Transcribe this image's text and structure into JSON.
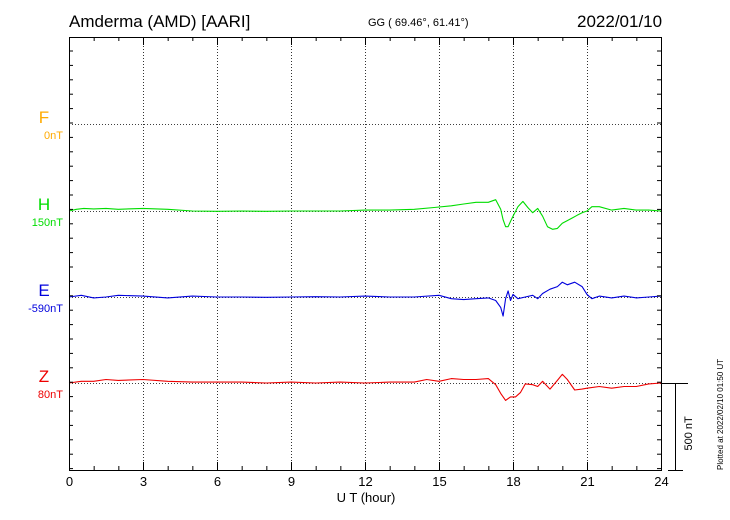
{
  "header": {
    "station": "Amderma (AMD)  [AARI]",
    "coordinates": "GG ( 69.46°,  61.41°)",
    "date": "2022/01/10"
  },
  "footnote": "Plotted at 2022/02/10 01:50 UT",
  "chart_data": {
    "type": "line",
    "xlabel": "U T (hour)",
    "xlim": [
      0,
      24
    ],
    "x_ticks": [
      0,
      3,
      6,
      9,
      12,
      15,
      18,
      21,
      24
    ],
    "grid": true,
    "scale_bar": {
      "label": "500 nT",
      "value_nT": 500
    },
    "series": [
      {
        "name": "F",
        "offset_label": "0nT",
        "color": "#FFAA00",
        "x": [],
        "y": []
      },
      {
        "name": "H",
        "offset_label": "150nT",
        "color": "#00DD00",
        "x": [
          0,
          0.3,
          0.6,
          1,
          1.5,
          2,
          3,
          4,
          5,
          6,
          7,
          8,
          9,
          10,
          11,
          12,
          13,
          14,
          14.8,
          15.5,
          16,
          16.5,
          17,
          17.3,
          17.5,
          17.6,
          17.7,
          17.8,
          17.9,
          18,
          18.2,
          18.4,
          18.6,
          18.8,
          19,
          19.2,
          19.4,
          19.6,
          19.8,
          20,
          20.2,
          20.4,
          20.6,
          20.8,
          21,
          21.2,
          21.5,
          22,
          22.5,
          23,
          23.5,
          24
        ],
        "y": [
          150,
          160,
          165,
          162,
          165,
          160,
          165,
          160,
          150,
          148,
          150,
          148,
          150,
          150,
          150,
          155,
          155,
          160,
          170,
          180,
          190,
          200,
          200,
          215,
          160,
          100,
          60,
          60,
          90,
          120,
          175,
          205,
          170,
          140,
          165,
          120,
          60,
          45,
          50,
          80,
          95,
          110,
          125,
          140,
          150,
          175,
          175,
          155,
          165,
          155,
          155,
          150
        ]
      },
      {
        "name": "E",
        "offset_label": "-590nT",
        "color": "#0000DD",
        "x": [
          0,
          0.5,
          1,
          1.5,
          2,
          3,
          4,
          5,
          6,
          7,
          8,
          9,
          10,
          11,
          12,
          13,
          14,
          15,
          15.5,
          16,
          16.5,
          17,
          17.3,
          17.5,
          17.6,
          17.7,
          17.8,
          17.9,
          18,
          18.2,
          18.5,
          18.8,
          19,
          19.2,
          19.5,
          19.8,
          20,
          20.2,
          20.5,
          20.8,
          21,
          21.2,
          21.5,
          22,
          22.5,
          23,
          23.5,
          24
        ],
        "y": [
          -590,
          -580,
          -595,
          -590,
          -580,
          -585,
          -595,
          -585,
          -590,
          -590,
          -592,
          -590,
          -588,
          -590,
          -585,
          -590,
          -590,
          -580,
          -600,
          -605,
          -600,
          -595,
          -610,
          -650,
          -700,
          -600,
          -555,
          -610,
          -575,
          -600,
          -590,
          -580,
          -600,
          -570,
          -545,
          -530,
          -505,
          -520,
          -505,
          -530,
          -575,
          -600,
          -585,
          -595,
          -585,
          -595,
          -590,
          -585
        ]
      },
      {
        "name": "Z",
        "offset_label": "80nT",
        "color": "#EE0000",
        "x": [
          0,
          0.5,
          1,
          1.5,
          2,
          3,
          4,
          5,
          6,
          7,
          8,
          9,
          10,
          11,
          12,
          13,
          14,
          14.5,
          15,
          15.5,
          16,
          16.5,
          17,
          17.3,
          17.5,
          17.7,
          17.9,
          18.1,
          18.3,
          18.5,
          18.8,
          19,
          19.2,
          19.5,
          19.8,
          20,
          20.2,
          20.5,
          20.8,
          21,
          21.5,
          22,
          22.5,
          23,
          23.5,
          24
        ],
        "y": [
          80,
          90,
          90,
          100,
          95,
          100,
          90,
          85,
          85,
          85,
          80,
          85,
          80,
          85,
          80,
          85,
          85,
          100,
          90,
          105,
          100,
          100,
          105,
          70,
          20,
          -20,
          0,
          0,
          25,
          75,
          70,
          60,
          90,
          45,
          95,
          130,
          100,
          40,
          45,
          50,
          60,
          50,
          60,
          60,
          75,
          80
        ]
      }
    ]
  }
}
